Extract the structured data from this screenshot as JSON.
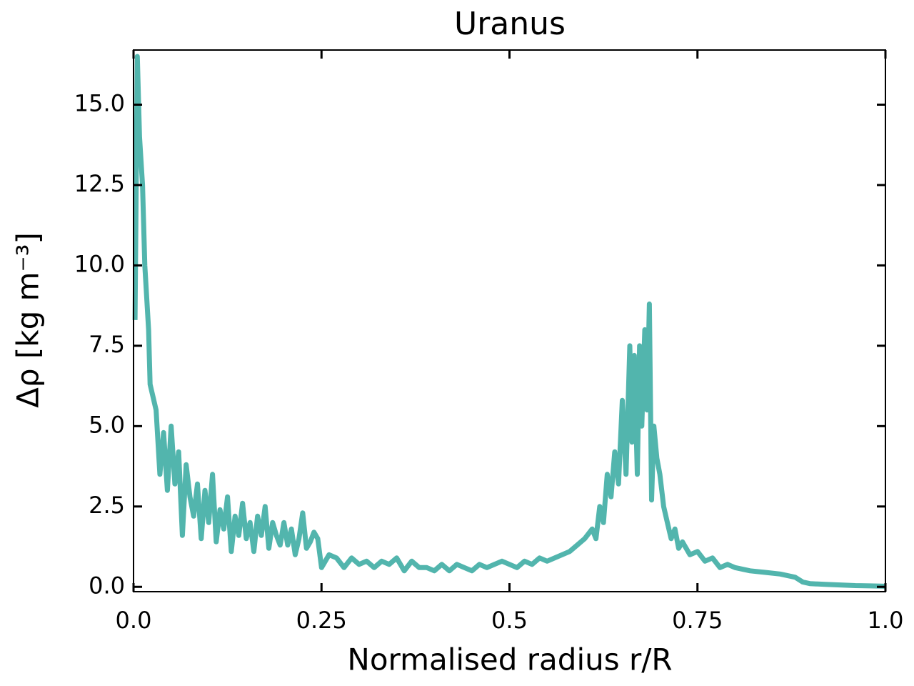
{
  "chart_data": {
    "type": "line",
    "title": "Uranus",
    "xlabel": "Normalised radius r/R",
    "ylabel": "Δρ [kg m⁻³]",
    "xlim": [
      0,
      1
    ],
    "ylim": [
      -0.15,
      16.7
    ],
    "xticks": [
      {
        "value": 0,
        "label": "0.0"
      },
      0.25,
      0.5,
      0.75,
      {
        "value": 1,
        "label": "1.0"
      }
    ],
    "yticks": [
      {
        "value": 0,
        "label": "0.0"
      },
      2.5,
      {
        "value": 5,
        "label": "5.0"
      },
      7.5,
      {
        "value": 10,
        "label": "10.0"
      },
      12.5,
      {
        "value": 15,
        "label": "15.0"
      }
    ],
    "series": [
      {
        "color": "#52b5ad",
        "x": [
          0.002,
          0.005,
          0.008,
          0.012,
          0.015,
          0.02,
          0.022,
          0.03,
          0.035,
          0.04,
          0.045,
          0.05,
          0.055,
          0.06,
          0.065,
          0.07,
          0.075,
          0.08,
          0.085,
          0.09,
          0.095,
          0.1,
          0.105,
          0.11,
          0.115,
          0.12,
          0.125,
          0.13,
          0.135,
          0.14,
          0.145,
          0.15,
          0.155,
          0.16,
          0.165,
          0.17,
          0.175,
          0.18,
          0.185,
          0.19,
          0.195,
          0.2,
          0.205,
          0.21,
          0.215,
          0.22,
          0.225,
          0.23,
          0.235,
          0.24,
          0.245,
          0.25,
          0.26,
          0.27,
          0.28,
          0.29,
          0.3,
          0.31,
          0.32,
          0.33,
          0.34,
          0.35,
          0.36,
          0.37,
          0.38,
          0.39,
          0.4,
          0.41,
          0.42,
          0.43,
          0.44,
          0.45,
          0.46,
          0.47,
          0.48,
          0.49,
          0.5,
          0.51,
          0.52,
          0.53,
          0.54,
          0.55,
          0.56,
          0.57,
          0.58,
          0.59,
          0.6,
          0.61,
          0.615,
          0.62,
          0.625,
          0.63,
          0.635,
          0.64,
          0.645,
          0.65,
          0.655,
          0.66,
          0.663,
          0.666,
          0.67,
          0.673,
          0.676,
          0.68,
          0.683,
          0.686,
          0.689,
          0.692,
          0.696,
          0.7,
          0.705,
          0.71,
          0.715,
          0.72,
          0.725,
          0.73,
          0.74,
          0.75,
          0.76,
          0.77,
          0.78,
          0.79,
          0.8,
          0.82,
          0.84,
          0.86,
          0.88,
          0.89,
          0.9,
          0.92,
          0.94,
          0.96,
          0.98,
          1.0
        ],
        "values": [
          8.3,
          16.5,
          14.0,
          12.5,
          10.0,
          8.0,
          6.3,
          5.5,
          3.5,
          4.8,
          3.0,
          5.0,
          3.2,
          4.2,
          1.6,
          3.8,
          2.8,
          2.2,
          3.2,
          1.5,
          3.0,
          2.0,
          3.5,
          1.4,
          2.4,
          1.8,
          2.8,
          1.1,
          2.2,
          1.6,
          2.6,
          1.5,
          2.0,
          1.1,
          2.2,
          1.6,
          2.5,
          1.2,
          2.0,
          1.6,
          1.3,
          2.0,
          1.3,
          1.8,
          1.0,
          1.5,
          2.3,
          1.2,
          1.4,
          1.7,
          1.5,
          0.6,
          1.0,
          0.9,
          0.6,
          0.9,
          0.7,
          0.8,
          0.6,
          0.8,
          0.7,
          0.9,
          0.5,
          0.8,
          0.6,
          0.6,
          0.5,
          0.7,
          0.5,
          0.7,
          0.6,
          0.5,
          0.7,
          0.6,
          0.7,
          0.8,
          0.7,
          0.6,
          0.8,
          0.7,
          0.9,
          0.8,
          0.9,
          1.0,
          1.1,
          1.3,
          1.5,
          1.8,
          1.5,
          2.5,
          2.0,
          3.5,
          2.8,
          4.2,
          3.2,
          5.8,
          3.5,
          7.5,
          4.5,
          7.2,
          3.5,
          7.5,
          5.0,
          8.0,
          5.5,
          8.8,
          2.7,
          5.0,
          4.0,
          3.5,
          2.5,
          2.0,
          1.5,
          1.8,
          1.2,
          1.4,
          1.0,
          1.1,
          0.8,
          0.9,
          0.6,
          0.7,
          0.6,
          0.5,
          0.45,
          0.4,
          0.3,
          0.15,
          0.1,
          0.08,
          0.06,
          0.04,
          0.03,
          0.02
        ]
      }
    ]
  }
}
